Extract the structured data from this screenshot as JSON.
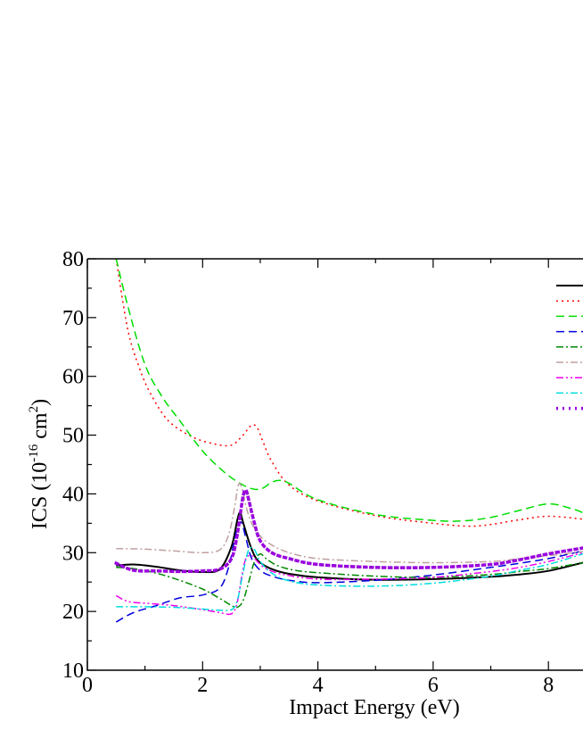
{
  "chart_data": {
    "type": "line",
    "title": "",
    "xlabel": "Impact Energy (eV)",
    "ylabel": {
      "main": "ICS (10",
      "exp1": "-16",
      "unit": " cm",
      "exp2": "2",
      "close": ")"
    },
    "xlim": [
      0,
      8.6
    ],
    "ylim": [
      10,
      80
    ],
    "xticks": [
      0,
      2,
      4,
      6,
      8
    ],
    "yticks": [
      10,
      20,
      30,
      40,
      50,
      60,
      70,
      80
    ],
    "grid": false,
    "legend": "top-right (clipped)",
    "series": [
      {
        "color": "#000000",
        "dash": "",
        "width": 2,
        "x": [
          0.5,
          0.8,
          1.2,
          1.6,
          2.0,
          2.3,
          2.5,
          2.6,
          2.65,
          2.7,
          2.8,
          2.9,
          3.0,
          3.2,
          3.5,
          4.0,
          5.0,
          6.0,
          7.0,
          7.5,
          8.0,
          8.6
        ],
        "y": [
          27.8,
          28.0,
          27.6,
          27.0,
          26.7,
          27.2,
          31.0,
          35.5,
          36.8,
          35.2,
          32.0,
          29.5,
          28.3,
          27.2,
          26.4,
          25.8,
          25.4,
          25.5,
          25.9,
          26.3,
          26.9,
          28.3
        ]
      },
      {
        "color": "#ff0000",
        "dash": "2,4",
        "width": 1.5,
        "x": [
          0.5,
          0.7,
          0.9,
          1.1,
          1.4,
          1.8,
          2.2,
          2.5,
          2.7,
          2.85,
          2.95,
          3.05,
          3.2,
          3.5,
          4.0,
          5.0,
          6.0,
          6.6,
          7.0,
          7.5,
          8.0,
          8.6
        ],
        "y": [
          80,
          68.0,
          61.5,
          57.0,
          52.5,
          49.8,
          48.5,
          48.3,
          50.0,
          51.7,
          51.2,
          48.8,
          45.5,
          41.5,
          38.8,
          36.3,
          35.0,
          34.5,
          34.8,
          35.6,
          36.2,
          35.7
        ]
      },
      {
        "color": "#00dd00",
        "dash": "9,5",
        "width": 1.5,
        "x": [
          0.5,
          0.7,
          1.0,
          1.3,
          1.6,
          2.0,
          2.4,
          2.7,
          2.9,
          3.05,
          3.2,
          3.35,
          3.5,
          4.0,
          5.0,
          6.0,
          6.5,
          7.0,
          7.5,
          8.0,
          8.4,
          8.6
        ],
        "y": [
          80,
          72.0,
          62.0,
          56.5,
          52.5,
          47.3,
          43.5,
          41.5,
          40.8,
          41.0,
          42.0,
          42.3,
          41.8,
          39.0,
          36.5,
          35.5,
          35.4,
          36.0,
          37.2,
          38.3,
          37.5,
          36.8
        ]
      },
      {
        "color": "#0000dd",
        "dash": "9,5",
        "width": 1.5,
        "x": [
          0.5,
          0.8,
          1.2,
          1.6,
          2.0,
          2.3,
          2.45,
          2.55,
          2.62,
          2.68,
          2.75,
          2.85,
          3.0,
          3.2,
          3.5,
          4.0,
          5.0,
          6.0,
          7.0,
          7.5,
          8.0,
          8.6
        ],
        "y": [
          18.2,
          19.8,
          21.0,
          22.3,
          22.8,
          24.0,
          27.5,
          32.0,
          34.8,
          35.0,
          32.5,
          29.0,
          27.0,
          26.0,
          25.3,
          24.9,
          25.3,
          26.2,
          27.5,
          28.2,
          29.0,
          30.3
        ]
      },
      {
        "color": "#008800",
        "dash": "8,3,2,3",
        "width": 1.5,
        "x": [
          0.5,
          0.8,
          1.2,
          1.6,
          2.0,
          2.3,
          2.5,
          2.6,
          2.7,
          2.8,
          2.9,
          3.0,
          3.1,
          3.3,
          3.6,
          4.0,
          5.0,
          6.0,
          7.0,
          7.5,
          8.0,
          8.6
        ],
        "y": [
          27.5,
          27.3,
          26.5,
          25.3,
          23.8,
          22.2,
          21.0,
          20.7,
          21.8,
          25.0,
          28.5,
          29.8,
          29.0,
          27.8,
          27.0,
          26.6,
          26.0,
          25.8,
          26.3,
          26.8,
          27.3,
          28.3
        ]
      },
      {
        "color": "#c0a0a0",
        "dash": "8,3,2,3",
        "width": 1.5,
        "x": [
          0.5,
          1.0,
          1.5,
          2.0,
          2.3,
          2.45,
          2.55,
          2.62,
          2.68,
          2.75,
          2.85,
          3.0,
          3.2,
          3.5,
          4.0,
          5.0,
          6.0,
          7.0,
          7.5,
          8.0,
          8.6
        ],
        "y": [
          30.7,
          30.6,
          30.3,
          30.0,
          30.5,
          33.0,
          37.5,
          41.5,
          41.0,
          38.0,
          35.0,
          32.8,
          31.3,
          30.0,
          29.0,
          28.5,
          28.3,
          28.5,
          29.0,
          29.5,
          30.2
        ]
      },
      {
        "color": "#ee00ee",
        "dash": "8,3,2,3,2,3",
        "width": 1.5,
        "x": [
          0.5,
          0.7,
          1.0,
          1.5,
          2.0,
          2.3,
          2.5,
          2.6,
          2.68,
          2.75,
          2.85,
          2.95,
          3.1,
          3.4,
          4.0,
          5.0,
          6.0,
          7.0,
          7.5,
          8.0,
          8.6
        ],
        "y": [
          22.7,
          21.7,
          21.4,
          21.0,
          20.3,
          19.8,
          19.6,
          21.5,
          26.0,
          29.0,
          29.5,
          28.5,
          27.3,
          26.3,
          25.5,
          25.5,
          25.8,
          26.8,
          27.5,
          28.5,
          30.0
        ]
      },
      {
        "color": "#00dddd",
        "dash": "8,3,2,3",
        "width": 1.5,
        "x": [
          0.5,
          1.0,
          1.5,
          2.0,
          2.3,
          2.5,
          2.6,
          2.7,
          2.8,
          2.9,
          3.0,
          3.2,
          3.5,
          4.0,
          5.0,
          6.0,
          7.0,
          7.5,
          8.0,
          8.6
        ],
        "y": [
          20.8,
          20.8,
          20.7,
          20.4,
          20.2,
          20.3,
          21.8,
          26.5,
          30.5,
          30.5,
          28.5,
          26.5,
          25.2,
          24.5,
          24.3,
          24.8,
          26.0,
          27.0,
          28.0,
          29.8
        ]
      },
      {
        "color": "#9900dd",
        "dash": "2,5",
        "width": 3.5,
        "x": [
          0.5,
          0.8,
          1.2,
          1.6,
          2.0,
          2.3,
          2.5,
          2.6,
          2.7,
          2.75,
          2.8,
          2.9,
          3.0,
          3.2,
          3.5,
          4.0,
          5.0,
          6.0,
          7.0,
          7.5,
          8.0,
          8.6
        ],
        "y": [
          28.2,
          27.0,
          26.9,
          26.8,
          26.9,
          27.2,
          29.0,
          33.0,
          39.5,
          40.6,
          39.0,
          35.0,
          32.0,
          30.0,
          29.0,
          28.0,
          27.5,
          27.5,
          28.0,
          28.8,
          29.8,
          30.8
        ]
      }
    ]
  }
}
